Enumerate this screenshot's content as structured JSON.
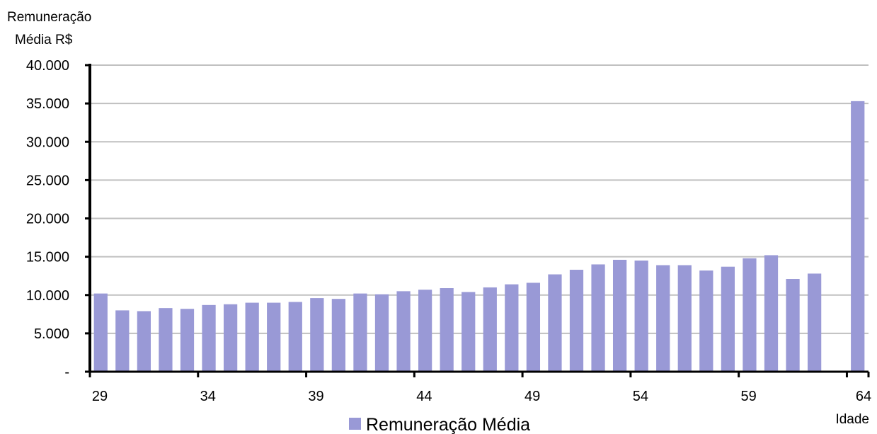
{
  "chart_data": {
    "type": "bar",
    "title": "",
    "ylabel_lines": [
      "Remuneração",
      "Média R$"
    ],
    "xlabel": "Idade",
    "ylim": [
      0,
      40000
    ],
    "y_ticks": [
      {
        "value": 0,
        "label": "-"
      },
      {
        "value": 5000,
        "label": "5.000"
      },
      {
        "value": 10000,
        "label": "10.000"
      },
      {
        "value": 15000,
        "label": "15.000"
      },
      {
        "value": 20000,
        "label": "20.000"
      },
      {
        "value": 25000,
        "label": "25.000"
      },
      {
        "value": 30000,
        "label": "30.000"
      },
      {
        "value": 35000,
        "label": "35.000"
      },
      {
        "value": 40000,
        "label": "40.000"
      }
    ],
    "x_tick_labels": [
      "29",
      "34",
      "39",
      "44",
      "49",
      "54",
      "59",
      "64"
    ],
    "categories": [
      29,
      30,
      31,
      32,
      33,
      34,
      35,
      36,
      37,
      38,
      39,
      40,
      41,
      42,
      43,
      44,
      45,
      46,
      47,
      48,
      49,
      50,
      51,
      52,
      53,
      54,
      55,
      56,
      57,
      58,
      59,
      60,
      61,
      62,
      63,
      64
    ],
    "series": [
      {
        "name": "Remuneração Média",
        "color": "#9999d6",
        "values": [
          10200,
          8000,
          7900,
          8300,
          8200,
          8700,
          8800,
          9000,
          9000,
          9100,
          9600,
          9500,
          10200,
          10100,
          10500,
          10700,
          10900,
          10400,
          11000,
          11400,
          11600,
          12700,
          13300,
          14000,
          14600,
          14500,
          13900,
          13900,
          13200,
          13700,
          14800,
          15200,
          12100,
          12800,
          0,
          35300
        ]
      }
    ],
    "grid": true,
    "legend": "bottom-center",
    "colors": {
      "gridline": "#c0c0c0",
      "axis": "#000000"
    }
  }
}
